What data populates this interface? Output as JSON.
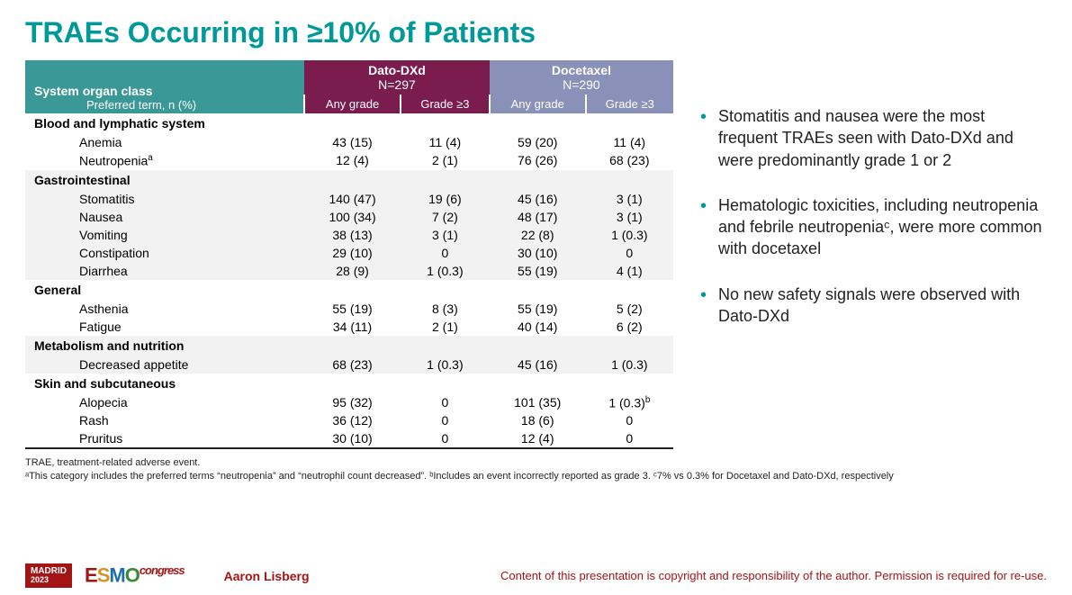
{
  "title": "TRAEs Occurring in ≥10% of Patients",
  "colors": {
    "title": "#009999",
    "soc_header": "#3a9996",
    "dato_header": "#7a1d4e",
    "doce_header": "#8a91b8",
    "alt_row": "#f2f2f2",
    "accent_red": "#a31515",
    "bullet": "#009999"
  },
  "table": {
    "soc_label": "System organ class",
    "pref_label": "Preferred term, n (%)",
    "groups": [
      {
        "name": "Dato-DXd",
        "n": "N=297",
        "sub": [
          "Any grade",
          "Grade ≥3"
        ]
      },
      {
        "name": "Docetaxel",
        "n": "N=290",
        "sub": [
          "Any grade",
          "Grade ≥3"
        ]
      }
    ],
    "sections": [
      {
        "category": "Blood and lymphatic system",
        "alt": false,
        "rows": [
          {
            "term": "Anemia",
            "vals": [
              "43 (15)",
              "11 (4)",
              "59 (20)",
              "11 (4)"
            ]
          },
          {
            "term": "Neutropenia",
            "sup": "a",
            "vals": [
              "12 (4)",
              "2 (1)",
              "76 (26)",
              "68 (23)"
            ]
          }
        ]
      },
      {
        "category": "Gastrointestinal",
        "alt": true,
        "rows": [
          {
            "term": "Stomatitis",
            "vals": [
              "140 (47)",
              "19 (6)",
              "45 (16)",
              "3 (1)"
            ]
          },
          {
            "term": "Nausea",
            "vals": [
              "100 (34)",
              "7 (2)",
              "48 (17)",
              "3 (1)"
            ]
          },
          {
            "term": "Vomiting",
            "vals": [
              "38 (13)",
              "3 (1)",
              "22 (8)",
              "1 (0.3)"
            ]
          },
          {
            "term": "Constipation",
            "vals": [
              "29 (10)",
              "0",
              "30 (10)",
              "0"
            ]
          },
          {
            "term": "Diarrhea",
            "vals": [
              "28 (9)",
              "1 (0.3)",
              "55 (19)",
              "4 (1)"
            ]
          }
        ]
      },
      {
        "category": "General",
        "alt": false,
        "rows": [
          {
            "term": "Asthenia",
            "vals": [
              "55 (19)",
              "8 (3)",
              "55 (19)",
              "5 (2)"
            ]
          },
          {
            "term": "Fatigue",
            "vals": [
              "34 (11)",
              "2 (1)",
              "40 (14)",
              "6 (2)"
            ]
          }
        ]
      },
      {
        "category": "Metabolism and nutrition",
        "alt": true,
        "rows": [
          {
            "term": "Decreased appetite",
            "vals": [
              "68 (23)",
              "1 (0.3)",
              "45 (16)",
              "1 (0.3)"
            ]
          }
        ]
      },
      {
        "category": "Skin and subcutaneous",
        "alt": false,
        "rows": [
          {
            "term": "Alopecia",
            "vals": [
              "95 (32)",
              "0",
              "101 (35)",
              "1 (0.3)"
            ],
            "valsup": [
              null,
              null,
              null,
              "b"
            ]
          },
          {
            "term": "Rash",
            "vals": [
              "36 (12)",
              "0",
              "18 (6)",
              "0"
            ]
          },
          {
            "term": "Pruritus",
            "vals": [
              "30 (10)",
              "0",
              "12 (4)",
              "0"
            ]
          }
        ]
      }
    ]
  },
  "bullets": [
    "Stomatitis and nausea were the most frequent TRAEs seen with Dato-DXd and were predominantly grade 1 or 2",
    "Hematologic toxicities, including neutropenia and febrile neutropeniaᶜ, were more common with docetaxel",
    "No new safety signals were observed with Dato-DXd"
  ],
  "footnotes": {
    "line1": "TRAE, treatment-related adverse event.",
    "line2": "ᵃThis category includes the preferred terms “neutropenia” and “neutrophil count decreased”. ᵇIncludes an event incorrectly reported as grade 3. ᶜ7% vs 0.3% for Docetaxel and Dato-DXd, respectively"
  },
  "footer": {
    "badge_city": "MADRID",
    "badge_year": "2023",
    "esmo": "ESMO",
    "congress": "congress",
    "author": "Aaron Lisberg",
    "copyright": "Content of this presentation is copyright and responsibility of the author. Permission is required for re-use."
  }
}
